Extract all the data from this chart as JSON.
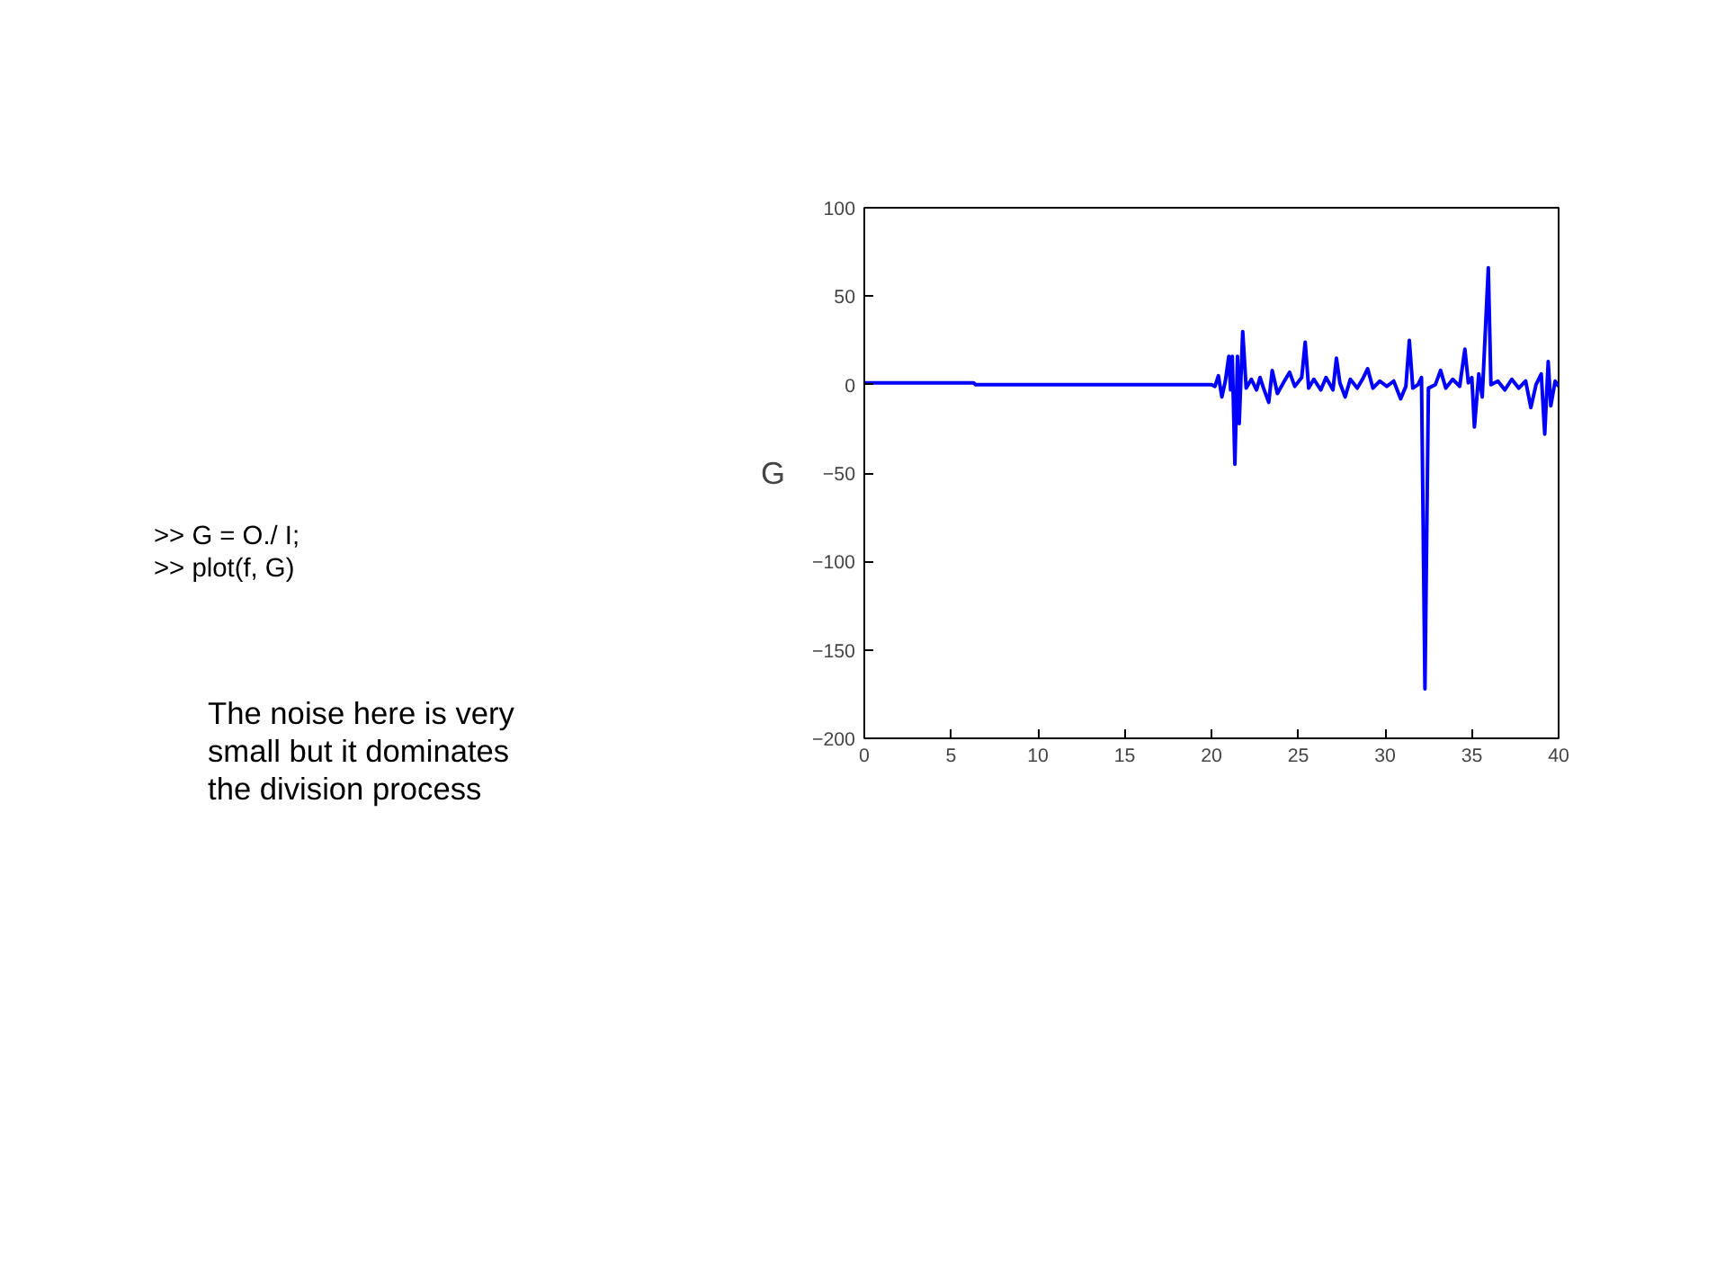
{
  "chart_data": {
    "type": "line",
    "ylabel": "G",
    "annotations": [
      ">> G = O./ I;",
      ">> plot(f, G)",
      "The noise here is very small but it dominates the division process"
    ],
    "xlim": [
      0,
      40
    ],
    "xticks": [
      0,
      5,
      10,
      15,
      20,
      25,
      30,
      35,
      40
    ],
    "ylim": [
      -200,
      100
    ],
    "yticks": [
      -200,
      -150,
      -100,
      -50,
      0,
      50,
      100
    ],
    "grid": false,
    "marker": "none",
    "line_style": "solid",
    "series": [
      {
        "color": "#0000ff",
        "x": [
          0,
          6.3,
          6.4,
          20,
          20.2,
          20.4,
          20.6,
          20.8,
          21.0,
          21.1,
          21.2,
          21.35,
          21.5,
          21.6,
          21.8,
          22.0,
          22.3,
          22.6,
          22.8,
          23.0,
          23.3,
          23.5,
          23.8,
          24.2,
          24.5,
          24.8,
          25.2,
          25.4,
          25.6,
          25.9,
          26.3,
          26.6,
          27.0,
          27.2,
          27.4,
          27.7,
          28.0,
          28.4,
          28.7,
          29.0,
          29.3,
          29.7,
          30.1,
          30.5,
          30.9,
          31.2,
          31.4,
          31.6,
          31.9,
          32.1,
          32.3,
          32.5,
          32.9,
          33.2,
          33.5,
          33.9,
          34.3,
          34.6,
          34.8,
          35.0,
          35.15,
          35.4,
          35.6,
          35.95,
          36.1,
          36.5,
          36.9,
          37.3,
          37.7,
          38.1,
          38.4,
          38.7,
          39.0,
          39.2,
          39.4,
          39.55,
          39.8,
          40
        ],
        "values": [
          1,
          1,
          0,
          0,
          -1,
          5,
          -7,
          2,
          16,
          -3,
          16,
          -45,
          16,
          -22,
          30,
          -2,
          3,
          -3,
          4,
          -2,
          -10,
          8,
          -5,
          2,
          7,
          -1,
          4,
          24,
          -2,
          3,
          -3,
          4,
          -3,
          15,
          1,
          -7,
          3,
          -2,
          3,
          9,
          -2,
          2,
          -1,
          2,
          -8,
          -1,
          25,
          -2,
          0,
          4,
          -172,
          -2,
          0,
          8,
          -2,
          3,
          -1,
          20,
          1,
          4,
          -24,
          6,
          -7,
          66,
          0,
          2,
          -3,
          3,
          -2,
          2,
          -13,
          0,
          6,
          -28,
          13,
          -12,
          2,
          -1
        ]
      }
    ]
  }
}
